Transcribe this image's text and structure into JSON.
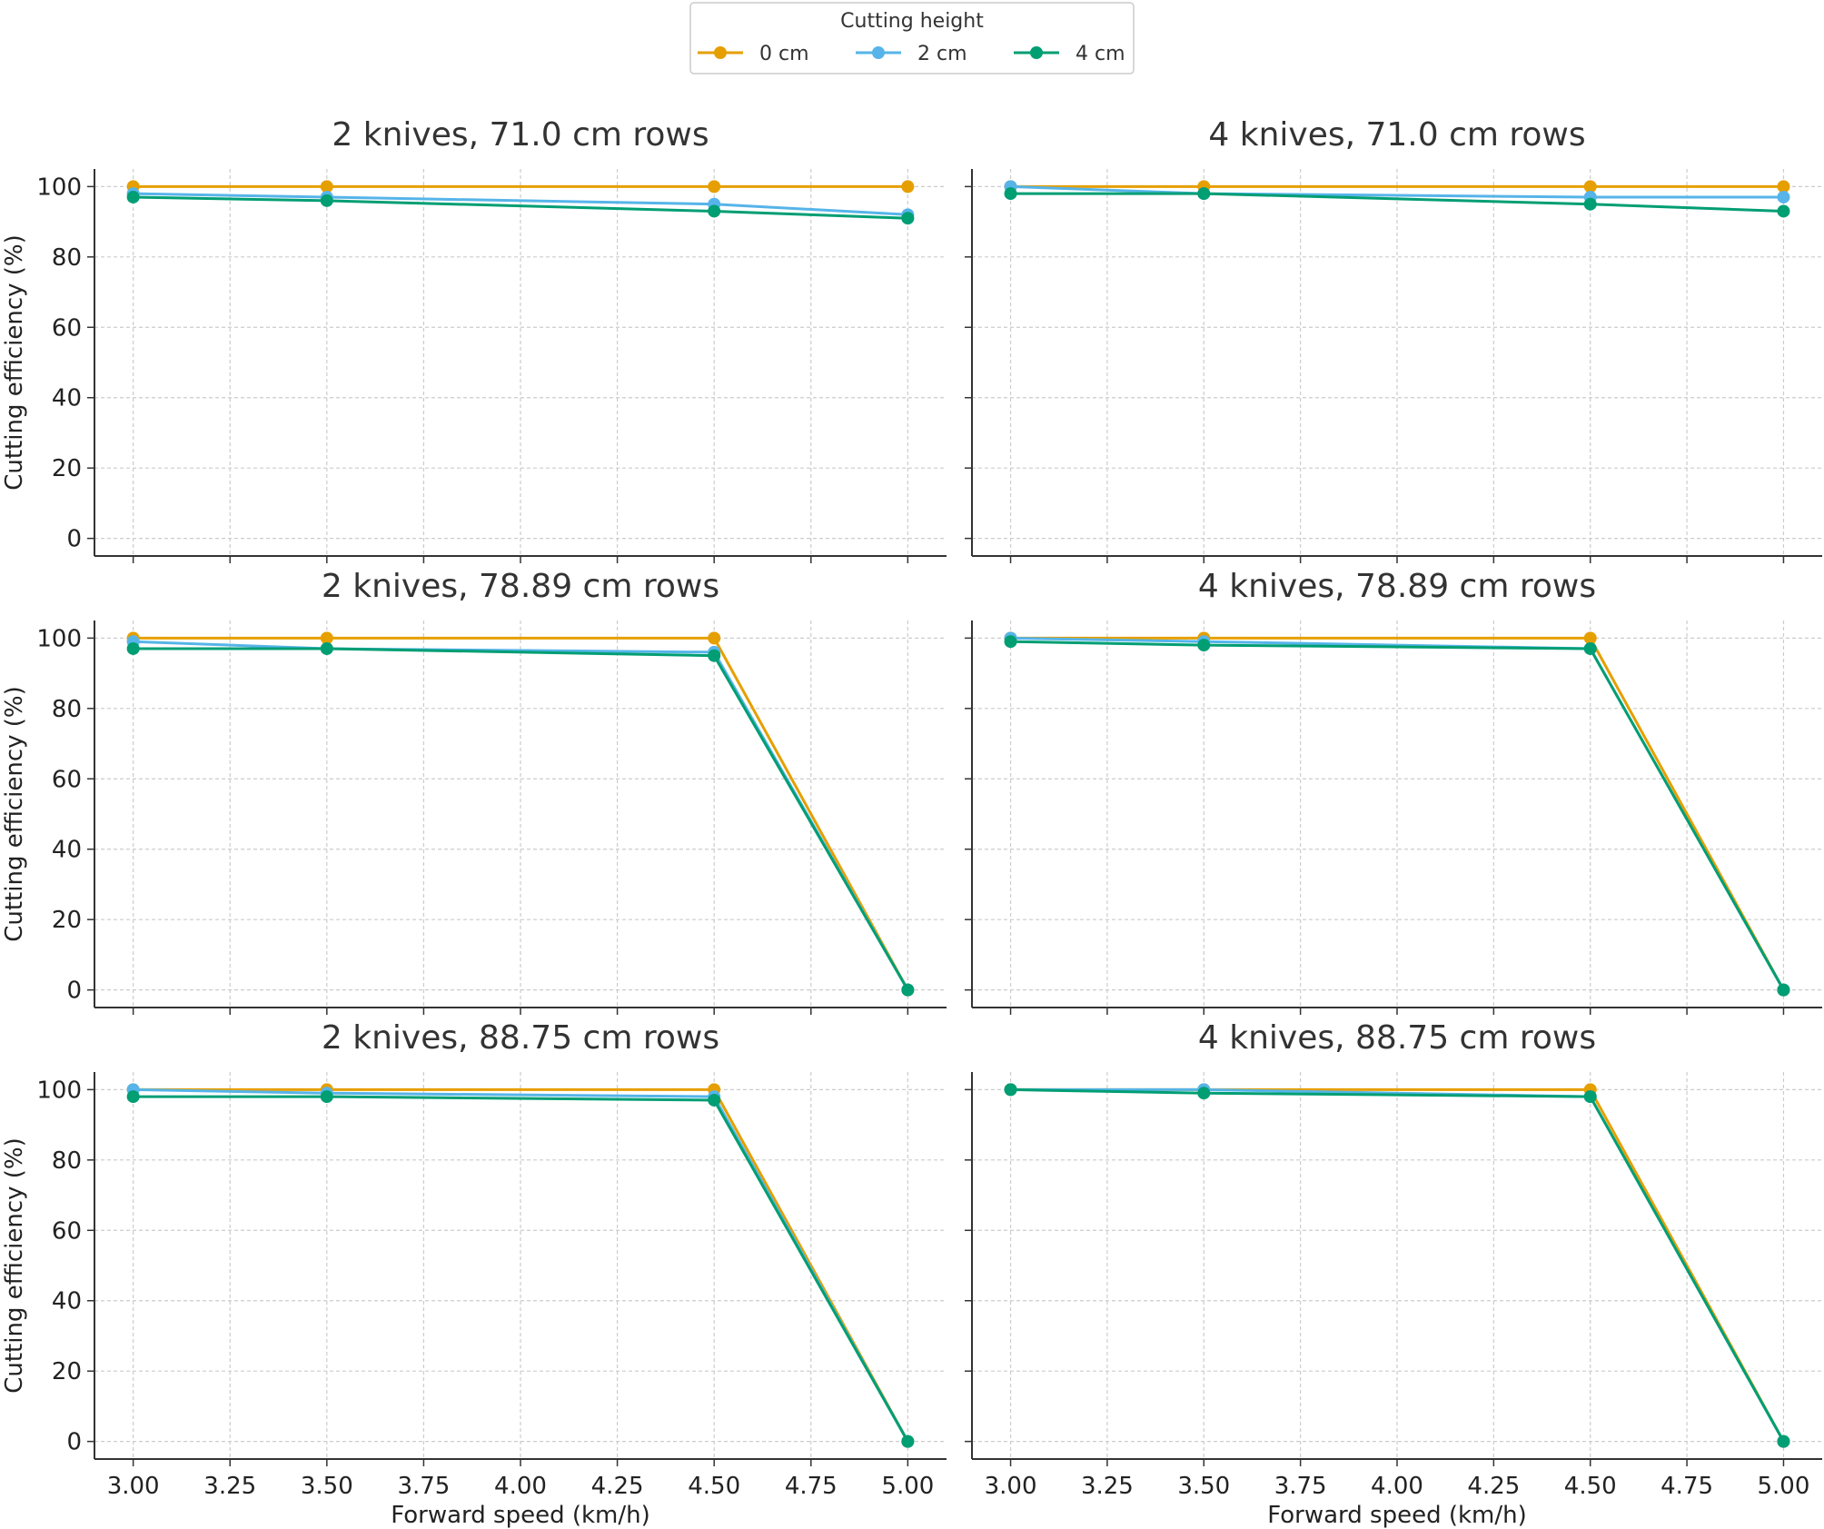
{
  "legend": {
    "title": "Cutting height",
    "placement": "top-center"
  },
  "chart_data": {
    "type": "line",
    "grid": true,
    "xlabel": "Forward speed (km/h)",
    "ylabel": "Cutting efficiency (%)",
    "xlim": [
      2.9,
      5.1
    ],
    "ylim": [
      -5,
      105
    ],
    "x_ticks": [
      "3.00",
      "3.25",
      "3.50",
      "3.75",
      "4.00",
      "4.25",
      "4.50",
      "4.75",
      "5.00"
    ],
    "y_ticks": [
      "0",
      "20",
      "40",
      "60",
      "80",
      "100"
    ],
    "series_styles": [
      {
        "name": "0 cm",
        "color": "#E69F00"
      },
      {
        "name": "2 cm",
        "color": "#56B4E9"
      },
      {
        "name": "4 cm",
        "color": "#009E73"
      }
    ],
    "panels": [
      {
        "title": "2 knives, 71.0 cm rows",
        "x": [
          3.0,
          3.5,
          4.5,
          5.0
        ],
        "series": [
          {
            "name": "0 cm",
            "values": [
              100,
              100,
              100,
              100
            ]
          },
          {
            "name": "2 cm",
            "values": [
              98,
              97,
              95,
              92
            ]
          },
          {
            "name": "4 cm",
            "values": [
              97,
              96,
              93,
              91
            ]
          }
        ]
      },
      {
        "title": "4 knives, 71.0 cm rows",
        "x": [
          3.0,
          3.5,
          4.5,
          5.0
        ],
        "series": [
          {
            "name": "0 cm",
            "values": [
              100,
              100,
              100,
              100
            ]
          },
          {
            "name": "2 cm",
            "values": [
              100,
              98,
              97,
              97
            ]
          },
          {
            "name": "4 cm",
            "values": [
              98,
              98,
              95,
              93
            ]
          }
        ]
      },
      {
        "title": "2 knives, 78.89 cm rows",
        "x": [
          3.0,
          3.5,
          4.5,
          5.0
        ],
        "series": [
          {
            "name": "0 cm",
            "values": [
              100,
              100,
              100,
              0
            ]
          },
          {
            "name": "2 cm",
            "values": [
              99,
              97,
              96,
              0
            ]
          },
          {
            "name": "4 cm",
            "values": [
              97,
              97,
              95,
              0
            ]
          }
        ]
      },
      {
        "title": "4 knives, 78.89 cm rows",
        "x": [
          3.0,
          3.5,
          4.5,
          5.0
        ],
        "series": [
          {
            "name": "0 cm",
            "values": [
              100,
              100,
              100,
              0
            ]
          },
          {
            "name": "2 cm",
            "values": [
              100,
              99,
              97,
              0
            ]
          },
          {
            "name": "4 cm",
            "values": [
              99,
              98,
              97,
              0
            ]
          }
        ]
      },
      {
        "title": "2 knives, 88.75 cm rows",
        "x": [
          3.0,
          3.5,
          4.5,
          5.0
        ],
        "series": [
          {
            "name": "0 cm",
            "values": [
              100,
              100,
              100,
              0
            ]
          },
          {
            "name": "2 cm",
            "values": [
              100,
              99,
              98,
              0
            ]
          },
          {
            "name": "4 cm",
            "values": [
              98,
              98,
              97,
              0
            ]
          }
        ]
      },
      {
        "title": "4 knives, 88.75 cm rows",
        "x": [
          3.0,
          3.5,
          4.5,
          5.0
        ],
        "series": [
          {
            "name": "0 cm",
            "values": [
              100,
              100,
              100,
              0
            ]
          },
          {
            "name": "2 cm",
            "values": [
              100,
              100,
              98,
              0
            ]
          },
          {
            "name": "4 cm",
            "values": [
              100,
              99,
              98,
              0
            ]
          }
        ]
      }
    ]
  }
}
